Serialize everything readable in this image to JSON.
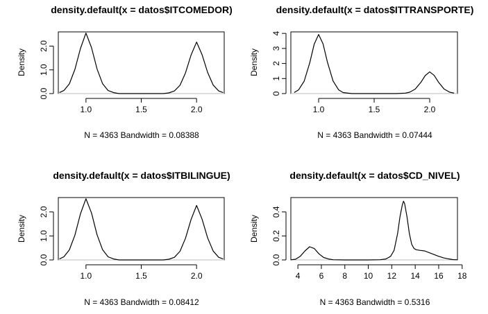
{
  "chart_data": [
    {
      "type": "line",
      "title": "density.default(x = datos$ITCOMEDOR)",
      "xlabel": "N = 4363   Bandwidth = 0.08388",
      "ylabel": "Density",
      "xlim": [
        0.75,
        2.25
      ],
      "ylim": [
        0,
        2.6
      ],
      "xticks": [
        1.0,
        1.5,
        2.0
      ],
      "xtick_labels": [
        "1.0",
        "1.5",
        "2.0"
      ],
      "yticks": [
        0.0,
        1.0,
        2.0
      ],
      "ytick_labels": [
        "0.0",
        "1.0",
        "2.0"
      ],
      "x": [
        0.76,
        0.8,
        0.85,
        0.9,
        0.95,
        1.0,
        1.05,
        1.1,
        1.15,
        1.2,
        1.25,
        1.3,
        1.4,
        1.5,
        1.6,
        1.7,
        1.75,
        1.8,
        1.85,
        1.9,
        1.95,
        2.0,
        2.05,
        2.1,
        2.15,
        2.2,
        2.24
      ],
      "y": [
        0.04,
        0.13,
        0.41,
        1.02,
        1.9,
        2.55,
        1.94,
        1.04,
        0.42,
        0.13,
        0.04,
        0.0,
        0.0,
        0.0,
        0.0,
        0.0,
        0.03,
        0.11,
        0.35,
        0.87,
        1.62,
        2.17,
        1.64,
        0.89,
        0.36,
        0.11,
        0.04
      ],
      "grid": false
    },
    {
      "type": "line",
      "title": "density.default(x = datos$ITTRANSPORTE)",
      "xlabel": "N = 4363   Bandwidth = 0.07444",
      "ylabel": "Density",
      "xlim": [
        0.75,
        2.25
      ],
      "ylim": [
        0,
        4.1
      ],
      "xticks": [
        1.0,
        1.5,
        2.0
      ],
      "xtick_labels": [
        "1.0",
        "1.5",
        "2.0"
      ],
      "yticks": [
        0,
        1,
        2,
        3,
        4
      ],
      "ytick_labels": [
        "0",
        "1",
        "2",
        "3",
        "4"
      ],
      "x": [
        0.78,
        0.82,
        0.87,
        0.92,
        0.96,
        1.0,
        1.04,
        1.08,
        1.13,
        1.18,
        1.22,
        1.3,
        1.4,
        1.5,
        1.6,
        1.7,
        1.78,
        1.82,
        1.87,
        1.92,
        1.96,
        2.0,
        2.04,
        2.08,
        2.13,
        2.18,
        2.22
      ],
      "y": [
        0.07,
        0.25,
        0.83,
        2.04,
        3.28,
        3.93,
        3.3,
        2.07,
        0.84,
        0.25,
        0.07,
        0.0,
        0.0,
        0.0,
        0.0,
        0.0,
        0.03,
        0.09,
        0.3,
        0.74,
        1.2,
        1.44,
        1.21,
        0.75,
        0.3,
        0.09,
        0.03
      ],
      "grid": false
    },
    {
      "type": "line",
      "title": "density.default(x = datos$ITBILINGUE)",
      "xlabel": "N = 4363   Bandwidth = 0.08412",
      "ylabel": "Density",
      "xlim": [
        0.75,
        2.25
      ],
      "ylim": [
        0,
        2.6
      ],
      "xticks": [
        1.0,
        1.5,
        2.0
      ],
      "xtick_labels": [
        "1.0",
        "1.5",
        "2.0"
      ],
      "yticks": [
        0.0,
        1.0,
        2.0
      ],
      "ytick_labels": [
        "0.0",
        "1.0",
        "2.0"
      ],
      "x": [
        0.76,
        0.8,
        0.85,
        0.9,
        0.95,
        1.0,
        1.05,
        1.1,
        1.15,
        1.2,
        1.25,
        1.3,
        1.4,
        1.5,
        1.6,
        1.7,
        1.75,
        1.8,
        1.85,
        1.9,
        1.95,
        2.0,
        2.05,
        2.1,
        2.15,
        2.2,
        2.24
      ],
      "y": [
        0.04,
        0.13,
        0.42,
        1.03,
        1.92,
        2.55,
        1.96,
        1.05,
        0.43,
        0.13,
        0.04,
        0.0,
        0.0,
        0.0,
        0.0,
        0.0,
        0.03,
        0.11,
        0.36,
        0.9,
        1.68,
        2.27,
        1.7,
        0.92,
        0.37,
        0.11,
        0.04
      ],
      "grid": false
    },
    {
      "type": "line",
      "title": "density.default(x = datos$CD_NIVEL)",
      "xlabel": "N = 4363   Bandwidth = 0.5316",
      "ylabel": "Density",
      "xlim": [
        3.4,
        17.6
      ],
      "ylim": [
        0,
        0.52
      ],
      "xticks": [
        4,
        6,
        8,
        10,
        12,
        14,
        16,
        18
      ],
      "xtick_labels": [
        "4",
        "6",
        "8",
        "10",
        "12",
        "14",
        "16",
        "18"
      ],
      "yticks": [
        0.0,
        0.2,
        0.4
      ],
      "ytick_labels": [
        "0.0",
        "0.2",
        "0.4"
      ],
      "x": [
        3.4,
        3.8,
        4.2,
        4.6,
        5.0,
        5.4,
        5.8,
        6.2,
        6.6,
        7.0,
        8.0,
        9.0,
        10.0,
        11.0,
        11.5,
        11.9,
        12.2,
        12.5,
        12.7,
        12.9,
        13.0,
        13.1,
        13.3,
        13.5,
        13.7,
        13.9,
        14.1,
        14.4,
        14.8,
        15.2,
        15.6,
        16.0,
        16.4,
        16.8,
        17.2,
        17.6
      ],
      "y": [
        0.001,
        0.006,
        0.03,
        0.075,
        0.11,
        0.095,
        0.05,
        0.02,
        0.008,
        0.002,
        0.0,
        0.0,
        0.0,
        0.002,
        0.008,
        0.03,
        0.08,
        0.22,
        0.36,
        0.46,
        0.49,
        0.47,
        0.36,
        0.22,
        0.13,
        0.095,
        0.085,
        0.08,
        0.075,
        0.06,
        0.045,
        0.03,
        0.018,
        0.009,
        0.003,
        0.001
      ],
      "grid": false
    }
  ]
}
